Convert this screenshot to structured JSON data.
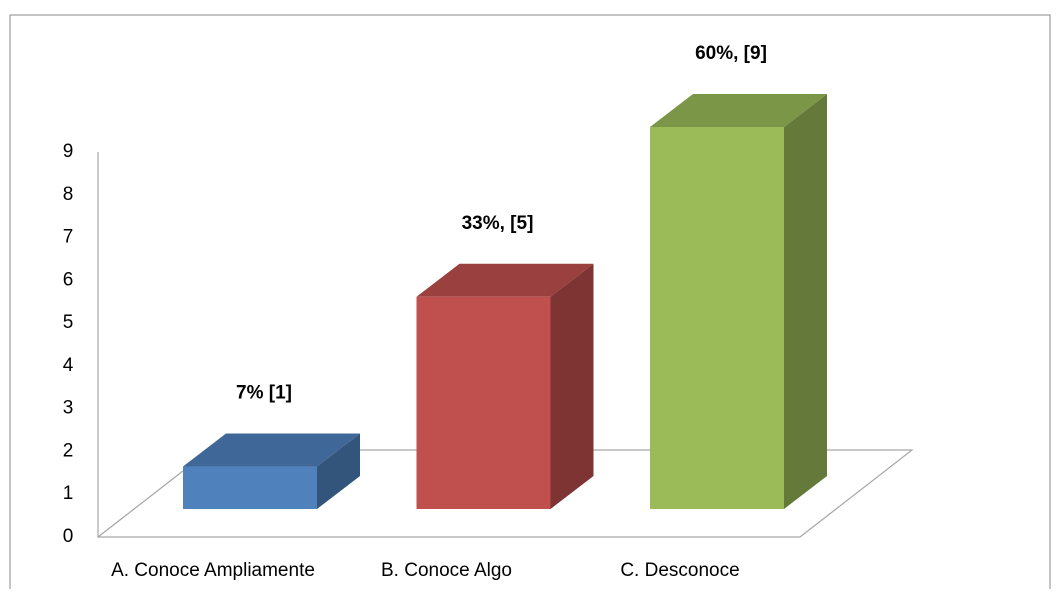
{
  "chart_data": {
    "type": "bar3d",
    "categories": [
      "A. Conoce Ampliamente",
      "B. Conoce Algo",
      "C. Desconoce"
    ],
    "values": [
      1,
      5,
      9
    ],
    "value_labels": [
      "7% [1]",
      "33%, [5]",
      "60%, [9]"
    ],
    "colors": [
      "#4f81bd",
      "#c0504d",
      "#9bbb59"
    ],
    "ylim": [
      0,
      9
    ],
    "yticks": [
      0,
      1,
      2,
      3,
      4,
      5,
      6,
      7,
      8,
      9
    ],
    "grid": false
  }
}
